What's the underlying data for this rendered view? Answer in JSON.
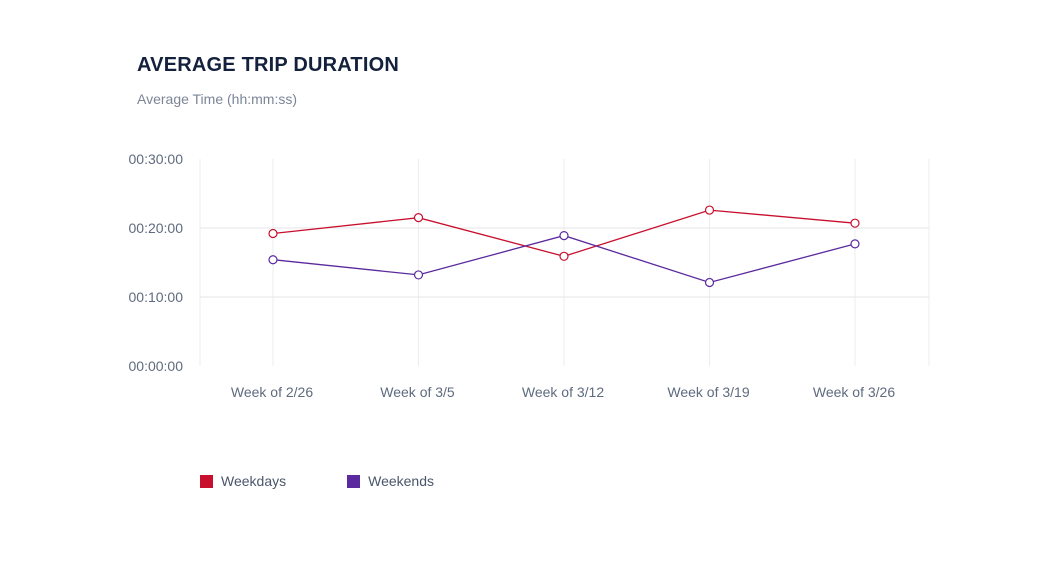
{
  "chart_data": {
    "type": "line",
    "title": "AVERAGE TRIP DURATION",
    "subtitle": "Average Time (hh:mm:ss)",
    "categories": [
      "Week of 2/26",
      "Week of 3/5",
      "Week of 3/12",
      "Week of 3/19",
      "Week of 3/26"
    ],
    "y_ticks": [
      "00:00:00",
      "00:10:00",
      "00:20:00",
      "00:30:00"
    ],
    "ylim": [
      0,
      30
    ],
    "y_unit": "minutes",
    "series": [
      {
        "name": "Weekdays",
        "color": "#c8102e",
        "values": [
          19.2,
          21.5,
          15.9,
          22.6,
          20.7
        ]
      },
      {
        "name": "Weekends",
        "color": "#5b2a9e",
        "values": [
          15.4,
          13.2,
          18.9,
          12.1,
          17.7
        ]
      }
    ],
    "grid": true,
    "legend_position": "bottom-left"
  }
}
